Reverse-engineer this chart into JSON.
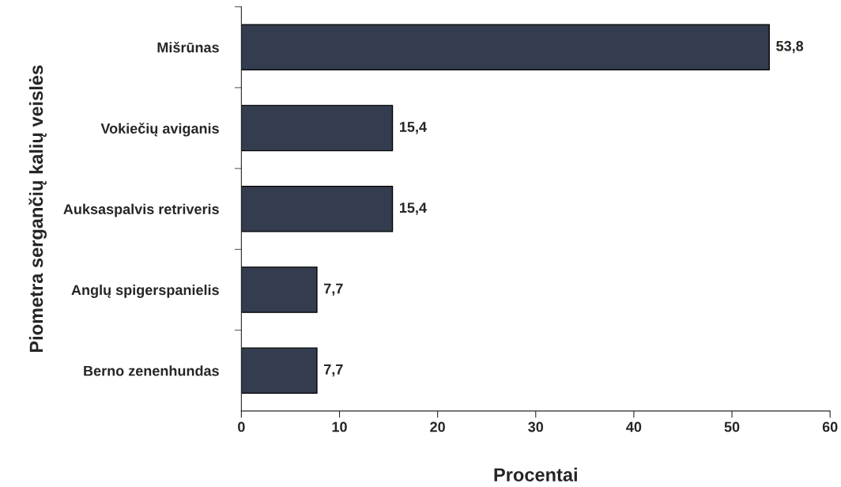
{
  "chart_data": {
    "type": "bar",
    "orientation": "horizontal",
    "xlabel": "Procentai",
    "ylabel": "Piometra sergančių kalių veislės",
    "categories": [
      "Mišrūnas",
      "Vokiečių aviganis",
      "Auksaspalvis retriveris",
      "Anglų spigerspanielis",
      "Berno zenenhundas"
    ],
    "values": [
      53.8,
      15.4,
      15.4,
      7.7,
      7.7
    ],
    "value_labels": [
      "53,8",
      "15,4",
      "15,4",
      "7,7",
      "7,7"
    ],
    "color": "#343d4f",
    "xlim": [
      0,
      60
    ],
    "xticks": [
      0,
      10,
      20,
      30,
      40,
      50,
      60
    ],
    "grid": false,
    "legend": false
  }
}
